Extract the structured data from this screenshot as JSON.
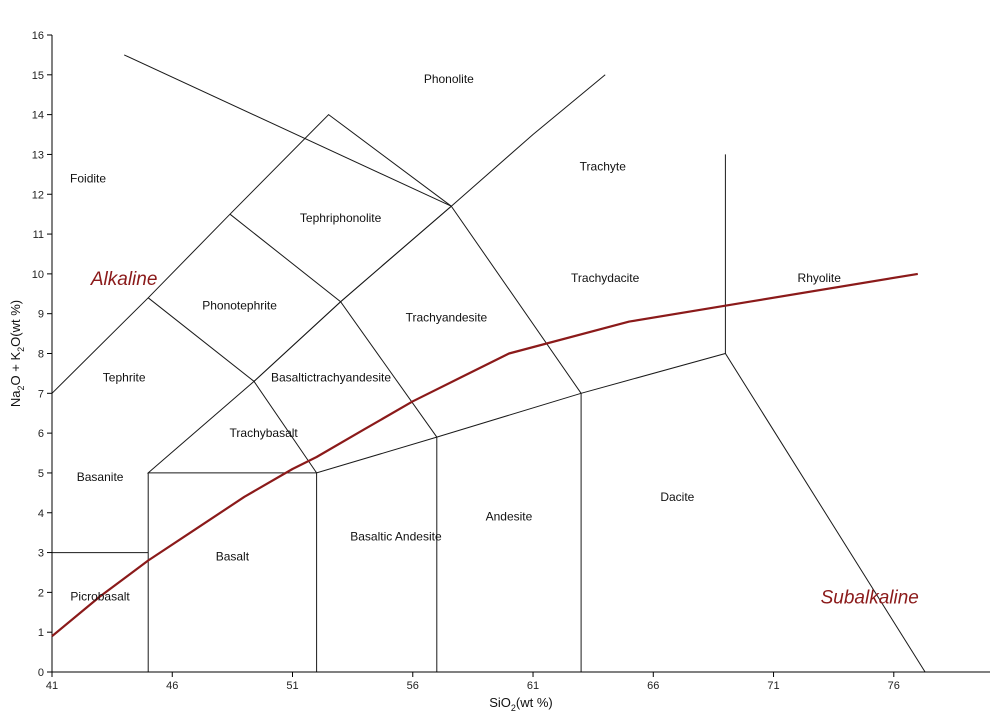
{
  "chart_data": {
    "type": "line",
    "title": "",
    "xlabel": {
      "base": "SiO",
      "sub": "2",
      "rest": "(wt %)"
    },
    "ylabel": {
      "p1": "Na",
      "s1": "2",
      "p2": "O + K",
      "s2": "2",
      "p3": "O(wt %)"
    },
    "xlim": [
      41,
      80
    ],
    "ylim": [
      0,
      16
    ],
    "x_ticks": [
      41,
      46,
      51,
      56,
      61,
      66,
      71,
      76
    ],
    "y_ticks": [
      0,
      1,
      2,
      3,
      4,
      5,
      6,
      7,
      8,
      9,
      10,
      11,
      12,
      13,
      14,
      15,
      16
    ],
    "grid": false,
    "boundaries": [
      [
        [
          41,
          0
        ],
        [
          41,
          7
        ],
        [
          45,
          9.4
        ],
        [
          48.4,
          11.5
        ],
        [
          52.5,
          14
        ],
        [
          57.6,
          11.7
        ],
        [
          53,
          9.3
        ],
        [
          49.4,
          7.3
        ],
        [
          45,
          5
        ],
        [
          52,
          5
        ],
        [
          57,
          5.9
        ],
        [
          63,
          7
        ],
        [
          69,
          8
        ],
        [
          77.3,
          0
        ]
      ],
      [
        [
          41,
          3
        ],
        [
          45,
          3
        ]
      ],
      [
        [
          45,
          0
        ],
        [
          45,
          5
        ]
      ],
      [
        [
          52,
          0
        ],
        [
          52,
          5
        ]
      ],
      [
        [
          57,
          0
        ],
        [
          57,
          5.9
        ]
      ],
      [
        [
          63,
          0
        ],
        [
          63,
          7
        ]
      ],
      [
        [
          69,
          8
        ],
        [
          69,
          13
        ]
      ],
      [
        [
          45,
          9.4
        ],
        [
          49.4,
          7.3
        ],
        [
          52,
          5
        ]
      ],
      [
        [
          48.4,
          11.5
        ],
        [
          53,
          9.3
        ],
        [
          57,
          5.9
        ]
      ],
      [
        [
          49.4,
          7.3
        ],
        [
          53,
          9.3
        ],
        [
          57.6,
          11.7
        ],
        [
          63,
          7
        ]
      ],
      [
        [
          57.6,
          11.7
        ],
        [
          44,
          15.5
        ]
      ],
      [
        [
          57.6,
          11.7
        ],
        [
          61,
          13.5
        ],
        [
          64,
          15
        ]
      ]
    ],
    "series": [
      {
        "name": "",
        "color": "#8b1a1a",
        "x": [
          41,
          43,
          45,
          47,
          49,
          51,
          52,
          54,
          56,
          58,
          60,
          65,
          70,
          77
        ],
        "y": [
          0.9,
          1.9,
          2.8,
          3.6,
          4.4,
          5.1,
          5.4,
          6.1,
          6.8,
          7.4,
          8.0,
          8.8,
          9.3,
          10.0
        ]
      }
    ],
    "annotations": [
      {
        "text": "Foidite",
        "x": 42.5,
        "y": 12.4
      },
      {
        "text": "Phonolite",
        "x": 57.5,
        "y": 14.9
      },
      {
        "text": "Trachyte",
        "x": 63.9,
        "y": 12.7
      },
      {
        "text": "Tephriphonolite",
        "x": 53,
        "y": 11.4
      },
      {
        "text": "Rhyolite",
        "x": 72.9,
        "y": 9.9
      },
      {
        "text": "Trachydacite",
        "x": 64,
        "y": 9.9
      },
      {
        "text": "Phonotephrite",
        "x": 48.8,
        "y": 9.2
      },
      {
        "text": "Trachyandesite",
        "x": 57.4,
        "y": 8.9
      },
      {
        "text": "Tephrite",
        "x": 44,
        "y": 7.4
      },
      {
        "text": "Basaltictrachyandesite",
        "x": 52.6,
        "y": 7.4
      },
      {
        "text": "Trachybasalt",
        "x": 49.8,
        "y": 6.0
      },
      {
        "text": "Basanite",
        "x": 43,
        "y": 4.9
      },
      {
        "text": "Dacite",
        "x": 67,
        "y": 4.4
      },
      {
        "text": "Andesite",
        "x": 60,
        "y": 3.9
      },
      {
        "text": "Basaltic Andesite",
        "x": 55.3,
        "y": 3.4
      },
      {
        "text": "Basalt",
        "x": 48.5,
        "y": 2.9
      },
      {
        "text": "Picrobasalt",
        "x": 43,
        "y": 1.9
      }
    ],
    "region_labels": [
      {
        "text": "Alkaline",
        "x": 44,
        "y": 9.9,
        "color": "#8b1a1a"
      },
      {
        "text": "Subalkaline",
        "x": 75,
        "y": 1.9,
        "color": "#8b1a1a"
      }
    ]
  }
}
